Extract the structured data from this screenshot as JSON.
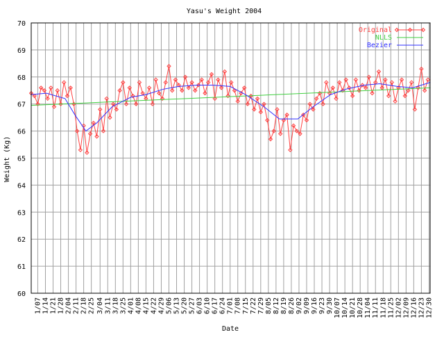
{
  "chart_data": {
    "type": "line",
    "title": "Yasu's Weight 2004",
    "xlabel": "Date",
    "ylabel": "Weight (Kg)",
    "ylim": [
      60,
      70
    ],
    "yticks": [
      "60",
      "61",
      "62",
      "63",
      "64",
      "65",
      "66",
      "67",
      "68",
      "69",
      "70"
    ],
    "x_tick_labels": [
      "1/07",
      "1/14",
      "1/21",
      "1/28",
      "2/04",
      "2/11",
      "2/18",
      "2/25",
      "3/04",
      "3/11",
      "3/18",
      "3/25",
      "4/01",
      "4/08",
      "4/15",
      "4/22",
      "4/29",
      "5/06",
      "5/13",
      "5/20",
      "5/27",
      "6/03",
      "6/10",
      "6/17",
      "6/24",
      "7/01",
      "7/08",
      "7/15",
      "7/22",
      "7/29",
      "8/05",
      "8/12",
      "8/19",
      "8/26",
      "9/02",
      "9/09",
      "9/16",
      "9/23",
      "9/30",
      "10/07",
      "10/14",
      "10/21",
      "10/28",
      "11/04",
      "11/11",
      "11/18",
      "11/25",
      "12/02",
      "12/09",
      "12/16",
      "12/23",
      "12/30"
    ],
    "grid": true,
    "legend_position": "top-right",
    "series": [
      {
        "name": "Original",
        "color": "#ff4040",
        "marker": "diamond",
        "x": [
          "1/01",
          "1/04",
          "1/07",
          "1/10",
          "1/13",
          "1/16",
          "1/19",
          "1/22",
          "1/25",
          "1/28",
          "1/31",
          "2/03",
          "2/06",
          "2/09",
          "2/12",
          "2/15",
          "2/18",
          "2/21",
          "2/24",
          "2/27",
          "3/01",
          "3/04",
          "3/07",
          "3/10",
          "3/13",
          "3/16",
          "3/19",
          "3/22",
          "3/25",
          "3/28",
          "3/31",
          "4/03",
          "4/06",
          "4/09",
          "4/12",
          "4/15",
          "4/18",
          "4/21",
          "4/24",
          "4/27",
          "4/30",
          "5/03",
          "5/06",
          "5/09",
          "5/12",
          "5/15",
          "5/18",
          "5/21",
          "5/24",
          "5/27",
          "5/30",
          "6/02",
          "6/05",
          "6/08",
          "6/11",
          "6/14",
          "6/17",
          "6/20",
          "6/23",
          "6/26",
          "6/29",
          "7/02",
          "7/05",
          "7/08",
          "7/11",
          "7/14",
          "7/17",
          "7/20",
          "7/23",
          "7/26",
          "7/29",
          "8/01",
          "8/04",
          "8/07",
          "8/10",
          "8/13",
          "8/16",
          "8/19",
          "8/22",
          "8/25",
          "8/28",
          "8/31",
          "9/03",
          "9/06",
          "9/09",
          "9/12",
          "9/15",
          "9/18",
          "9/21",
          "9/24",
          "9/27",
          "9/30",
          "10/03",
          "10/06",
          "10/09",
          "10/12",
          "10/15",
          "10/18",
          "10/21",
          "10/24",
          "10/27",
          "10/30",
          "11/02",
          "11/05",
          "11/08",
          "11/11",
          "11/14",
          "11/17",
          "11/20",
          "11/23",
          "11/26",
          "11/29",
          "12/02",
          "12/05",
          "12/08",
          "12/11",
          "12/14",
          "12/17",
          "12/20",
          "12/23",
          "12/26",
          "12/29"
        ],
        "values": [
          67.4,
          67.3,
          67.0,
          67.6,
          67.5,
          67.2,
          67.6,
          66.9,
          67.5,
          67.0,
          67.8,
          67.3,
          67.6,
          67.0,
          66.0,
          65.3,
          66.2,
          65.2,
          65.9,
          66.3,
          65.8,
          66.8,
          66.0,
          67.2,
          66.5,
          67.0,
          66.8,
          67.5,
          67.8,
          67.0,
          67.6,
          67.3,
          67.0,
          67.8,
          67.4,
          67.2,
          67.6,
          67.0,
          67.9,
          67.4,
          67.2,
          67.8,
          68.4,
          67.5,
          67.9,
          67.7,
          67.5,
          68.0,
          67.6,
          67.8,
          67.5,
          67.7,
          67.9,
          67.4,
          67.8,
          68.1,
          67.2,
          67.9,
          67.6,
          68.2,
          67.3,
          67.8,
          67.5,
          67.1,
          67.4,
          67.6,
          67.0,
          67.3,
          66.8,
          67.2,
          66.7,
          67.0,
          66.4,
          65.7,
          66.0,
          66.8,
          65.9,
          66.4,
          66.6,
          65.3,
          66.2,
          66.0,
          65.9,
          66.6,
          66.4,
          67.0,
          66.8,
          67.2,
          67.4,
          67.0,
          67.8,
          67.4,
          67.6,
          67.2,
          67.8,
          67.5,
          67.9,
          67.6,
          67.3,
          67.9,
          67.5,
          67.7,
          67.6,
          68.0,
          67.4,
          67.8,
          68.2,
          67.6,
          67.9,
          67.3,
          67.8,
          67.1,
          67.6,
          67.9,
          67.3,
          67.5,
          67.8,
          66.8,
          67.6,
          68.3,
          67.5,
          67.9
        ]
      },
      {
        "name": "NLLS",
        "color": "#40d040",
        "x": [
          "1/01",
          "12/31"
        ],
        "values": [
          66.95,
          67.6
        ]
      },
      {
        "name": "Bezier",
        "color": "#3030ff",
        "x": [
          "1/01",
          "1/15",
          "2/01",
          "2/10",
          "2/20",
          "3/01",
          "3/15",
          "4/01",
          "4/15",
          "5/01",
          "5/15",
          "6/01",
          "6/15",
          "7/01",
          "7/15",
          "8/01",
          "8/15",
          "9/01",
          "9/15",
          "10/01",
          "10/15",
          "11/01",
          "11/15",
          "12/01",
          "12/15",
          "12/31"
        ],
        "values": [
          67.35,
          67.4,
          67.2,
          66.6,
          66.0,
          66.3,
          66.9,
          67.25,
          67.35,
          67.55,
          67.65,
          67.7,
          67.7,
          67.65,
          67.35,
          66.9,
          66.45,
          66.45,
          66.9,
          67.35,
          67.55,
          67.7,
          67.75,
          67.65,
          67.6,
          67.8
        ]
      }
    ]
  }
}
